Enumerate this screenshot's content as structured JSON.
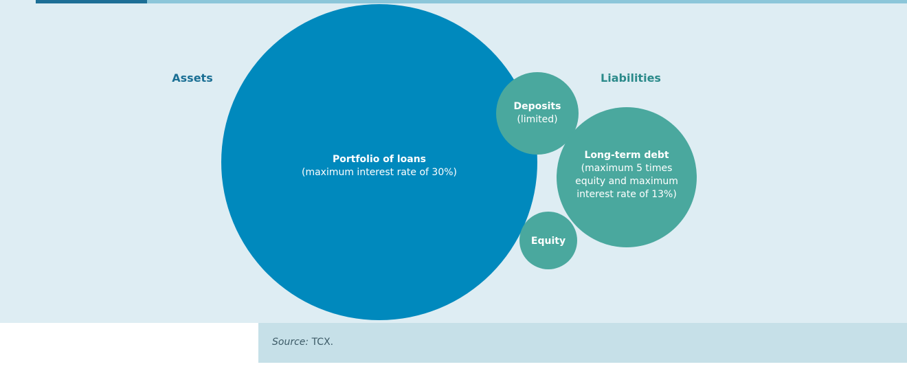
{
  "assets_label": "Assets",
  "liabilities_label": "Liabilities",
  "nodes": [
    {
      "title": "Portfolio of loans",
      "lines": [
        "(maximum interest rate of 30%)"
      ]
    },
    {
      "title": "Deposits",
      "lines": [
        "(limited)"
      ]
    },
    {
      "title": "Long-term debt",
      "lines": [
        "(maximum 5 times",
        "equity and maximum",
        "interest rate of 13%)"
      ]
    },
    {
      "title": "Equity",
      "lines": []
    }
  ],
  "source": {
    "label": "Source:",
    "text": "TCX."
  }
}
